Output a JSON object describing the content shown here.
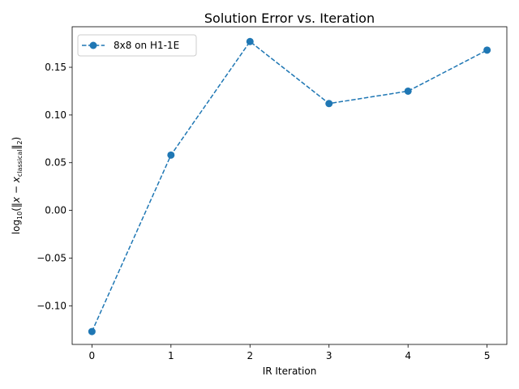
{
  "chart_data": {
    "type": "line",
    "title": "Solution Error vs. Iteration",
    "xlabel": "IR Iteration",
    "ylabel": {
      "prefix": "log",
      "log_base": "10",
      "open": "(‖",
      "x": "x",
      "minus": " − ",
      "x_sub": "x",
      "sub": "classical",
      "close": "‖",
      "norm_sub": "2",
      "end": ")"
    },
    "xlim": [
      -0.25,
      5.25
    ],
    "ylim": [
      -0.1405,
      0.1925
    ],
    "x_ticks": [
      0,
      1,
      2,
      3,
      4,
      5
    ],
    "x_tick_labels": [
      "0",
      "1",
      "2",
      "3",
      "4",
      "5"
    ],
    "y_ticks": [
      -0.1,
      -0.05,
      0.0,
      0.05,
      0.1,
      0.15
    ],
    "y_tick_labels": [
      "−0.10",
      "−0.05",
      "0.00",
      "0.05",
      "0.10",
      "0.15"
    ],
    "grid": false,
    "legend_position": "top-left",
    "series": [
      {
        "name": "8x8 on H1-1E",
        "color": "#1f77b4",
        "line_style": "dashed",
        "marker": "circle",
        "x": [
          0,
          1,
          2,
          3,
          4,
          5
        ],
        "y": [
          -0.127,
          0.058,
          0.177,
          0.112,
          0.125,
          0.168
        ]
      }
    ]
  }
}
